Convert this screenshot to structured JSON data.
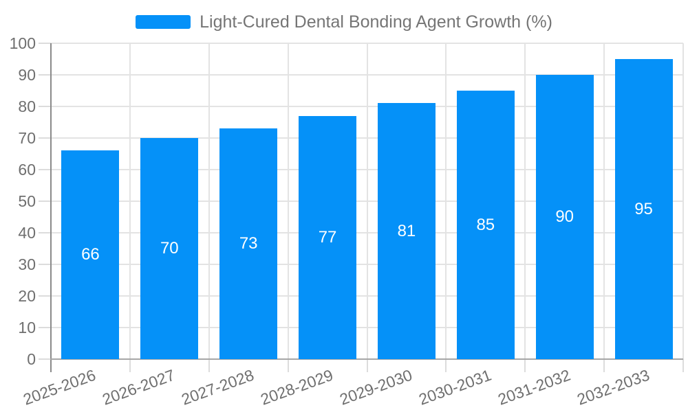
{
  "chart_data": {
    "type": "bar",
    "title": "",
    "legend": {
      "position": "top-center",
      "entries": [
        "Light-Cured Dental Bonding Agent Growth (%)"
      ]
    },
    "categories": [
      "2025-2026",
      "2026-2027",
      "2027-2028",
      "2028-2029",
      "2029-2030",
      "2030-2031",
      "2031-2032",
      "2032-2033"
    ],
    "series": [
      {
        "name": "Light-Cured Dental Bonding Agent Growth (%)",
        "values": [
          66,
          70,
          73,
          77,
          81,
          85,
          90,
          95
        ]
      }
    ],
    "value_labels_visible": true,
    "xlabel": "",
    "ylabel": "",
    "ylim": [
      0,
      100
    ],
    "yticks": [
      0,
      10,
      20,
      30,
      40,
      50,
      60,
      70,
      80,
      90,
      100
    ],
    "x_tick_label_rotation_deg": -20,
    "grid": "on",
    "colors": {
      "bar_fill": "#0591f8",
      "bar_value_label": "#ffffff",
      "grid_line": "#e3e3e3",
      "tick_mark": "#dcdcdc",
      "y_axis_line": "#8a8a8a",
      "x_axis_line": "#a6a6a6",
      "axis_text": "#6f6f6f",
      "legend_text": "#757575",
      "background": "#ffffff"
    }
  }
}
